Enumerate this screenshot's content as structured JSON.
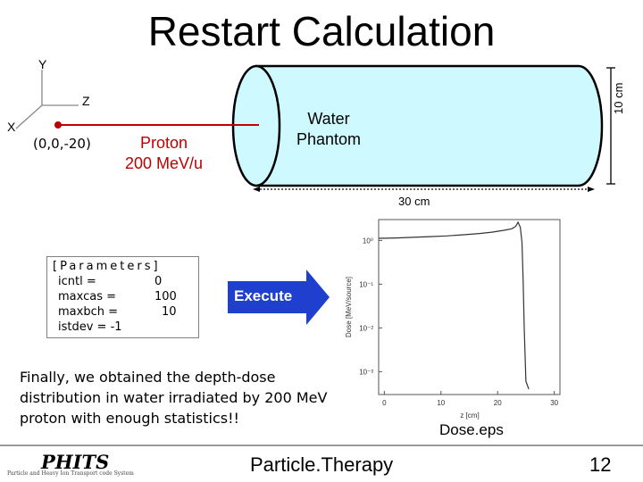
{
  "title": "Restart Calculation",
  "axes": {
    "y_label": "Y",
    "z_label": "Z",
    "x_label": "X"
  },
  "source": {
    "position_label": "(0,0,-20)",
    "particle_label": "Proton",
    "energy_label": "200 MeV/u"
  },
  "phantom": {
    "label": "Water\nPhantom",
    "height_label": "10 cm",
    "length_label": "30 cm",
    "fill_color": "#cdf9ff"
  },
  "parameters": {
    "header": "[Parameters]",
    "rows": [
      {
        "name": "icntl   =",
        "value": "0"
      },
      {
        "name": "maxcas   =",
        "value": "100"
      },
      {
        "name": "maxbch   =",
        "value": "10"
      },
      {
        "name": "istdev  = -1",
        "value": ""
      }
    ]
  },
  "execute_label": "Execute",
  "execute_color": "#1f3fcf",
  "summary_text": "Finally, we obtained the depth-dose distribution in water irradiated by 200 MeV proton with enough statistics!!",
  "dose_caption": "Dose.eps",
  "footer": {
    "center": "Particle.Therapy",
    "page_number": "12",
    "logo_text": "PHITS",
    "logo_subtitle": "Particle and Heavy Ion Transport code System"
  },
  "chart_data": {
    "type": "line",
    "xlabel": "z [cm]",
    "ylabel": "Dose [MeV/source]",
    "x_ticks": [
      0,
      10,
      20,
      30
    ],
    "y_ticks": [
      "10⁰",
      "10⁻¹",
      "10⁻²",
      "10⁻³"
    ],
    "y_tick_values": [
      1,
      0.1,
      0.01,
      0.001
    ],
    "xlim": [
      -1,
      31
    ],
    "ylim": [
      0.0003,
      3
    ],
    "log_y": true,
    "series": [
      {
        "values": [
          [
            -1,
            1.12
          ],
          [
            2,
            1.14
          ],
          [
            5,
            1.18
          ],
          [
            8,
            1.22
          ],
          [
            11,
            1.27
          ],
          [
            14,
            1.35
          ],
          [
            17,
            1.45
          ],
          [
            19,
            1.55
          ],
          [
            21,
            1.7
          ],
          [
            22.5,
            1.85
          ],
          [
            23.2,
            2.1
          ],
          [
            23.6,
            2.6
          ],
          [
            24.0,
            2.0
          ],
          [
            24.3,
            0.9
          ],
          [
            24.5,
            0.12
          ],
          [
            24.7,
            0.01
          ],
          [
            25,
            0.0006
          ],
          [
            25.5,
            0.0004
          ]
        ]
      }
    ]
  }
}
